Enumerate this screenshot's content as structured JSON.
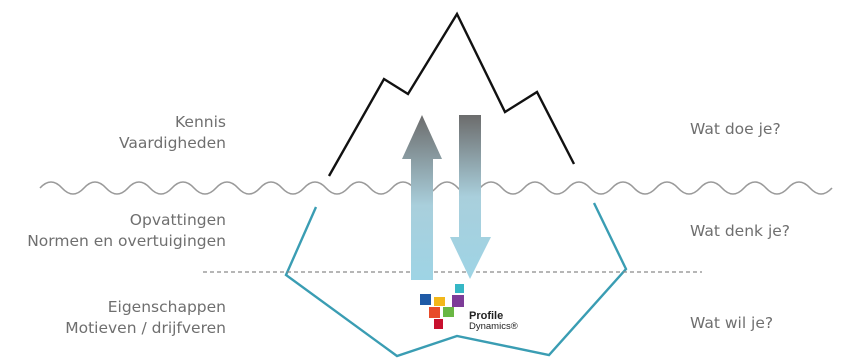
{
  "left_labels": {
    "above_line1": "Kennis",
    "above_line2": "Vaardigheden",
    "middle_line1": "Opvattingen",
    "middle_line2": "Normen en overtuigingen",
    "bottom_line1": "Eigenschappen",
    "bottom_line2": "Motieven / drijfveren"
  },
  "right_labels": {
    "above": "Wat doe je?",
    "middle": "Wat denk je?",
    "bottom": "Wat wil je?"
  },
  "logo": {
    "line1": "Profile",
    "line2": "Dynamics®",
    "colors": [
      "#1f5aa6",
      "#f2b71b",
      "#e84b2a",
      "#6ab744",
      "#7d3c98",
      "#35b7c5",
      "#c8102e"
    ]
  },
  "colors": {
    "peak_outline": "#111111",
    "water_line": "#9a9a9a",
    "underwater_outline": "#3a9db3",
    "dashed_line": "#8a8a8a",
    "label_text": "#6f6f6f",
    "arrow_dark": "#6c6c6c",
    "arrow_light": "#9ed4e5"
  }
}
